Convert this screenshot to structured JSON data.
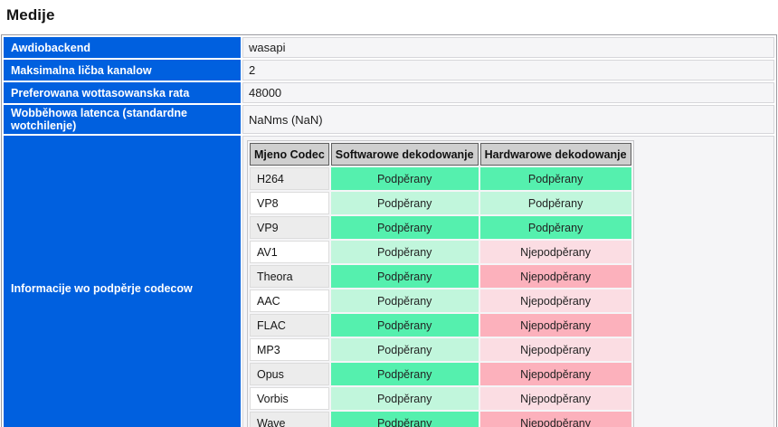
{
  "page": {
    "title": "Medije"
  },
  "info_rows": [
    {
      "label": "Awdiobackend",
      "value": "wasapi"
    },
    {
      "label": "Maksimalna ličba kanalow",
      "value": "2"
    },
    {
      "label": "Preferowana wottasowanska rata",
      "value": "48000"
    },
    {
      "label": "Wobběhowa latenca (standardne wotchilenje)",
      "value": "NaNms (NaN)"
    }
  ],
  "codec_section": {
    "label": "Informacije wo podpěrje codecow",
    "table": {
      "headers": [
        "Mjeno Codec",
        "Softwarowe dekodowanje",
        "Hardwarowe dekodowanje"
      ],
      "supported_label": "Podpěrany",
      "unsupported_label": "Njepodpěrany",
      "rows": [
        {
          "codec": "H264",
          "software": true,
          "hardware": true
        },
        {
          "codec": "VP8",
          "software": true,
          "hardware": true
        },
        {
          "codec": "VP9",
          "software": true,
          "hardware": true
        },
        {
          "codec": "AV1",
          "software": true,
          "hardware": false
        },
        {
          "codec": "Theora",
          "software": true,
          "hardware": false
        },
        {
          "codec": "AAC",
          "software": true,
          "hardware": false
        },
        {
          "codec": "FLAC",
          "software": true,
          "hardware": false
        },
        {
          "codec": "MP3",
          "software": true,
          "hardware": false
        },
        {
          "codec": "Opus",
          "software": true,
          "hardware": false
        },
        {
          "codec": "Vorbis",
          "software": true,
          "hardware": false
        },
        {
          "codec": "Wave",
          "software": true,
          "hardware": false
        }
      ]
    }
  },
  "colors": {
    "accent_blue": "#0060df",
    "value_bg": "#f5f5f7",
    "header_gray": "#cfcfcf",
    "supported_strong": "#55f0ae",
    "supported_light": "#c1f6dc",
    "unsupported_strong": "#fcb1bc",
    "unsupported_light": "#fbdde3"
  }
}
